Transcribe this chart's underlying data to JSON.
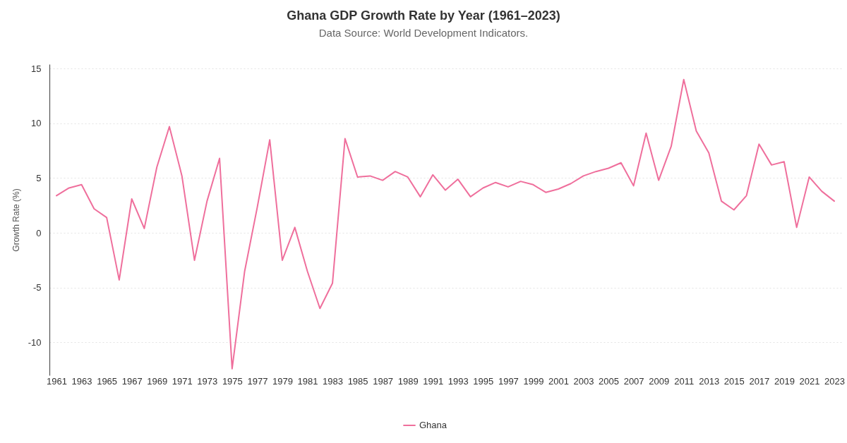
{
  "chart_data": {
    "type": "line",
    "title": "Ghana GDP Growth Rate by Year (1961–2023)",
    "subtitle": "Data Source: World Development Indicators.",
    "ylabel": "Growth Rate (%)",
    "categories": [
      "1961",
      null,
      "1963",
      null,
      "1965",
      null,
      "1967",
      null,
      "1969",
      null,
      "1971",
      null,
      "1973",
      null,
      "1975",
      null,
      "1977",
      null,
      "1979",
      null,
      "1981",
      null,
      "1983",
      null,
      "1985",
      null,
      "1987",
      null,
      "1989",
      null,
      "1991",
      null,
      "1993",
      null,
      "1995",
      null,
      "1997",
      null,
      "1999",
      null,
      "2001",
      null,
      "2003",
      null,
      "2005",
      null,
      "2007",
      null,
      "2009",
      null,
      "2011",
      null,
      "2013",
      null,
      "2015",
      null,
      "2017",
      null,
      "2019",
      null,
      "2021",
      null,
      "2023"
    ],
    "series": [
      {
        "name": "Ghana",
        "color": "#ef6f9c",
        "values": [
          3.4,
          4.1,
          4.4,
          2.2,
          1.4,
          -4.3,
          3.1,
          0.4,
          6.0,
          9.7,
          5.2,
          -2.5,
          2.9,
          6.8,
          -12.4,
          -3.5,
          2.3,
          8.5,
          -2.5,
          0.5,
          -3.5,
          -6.9,
          -4.6,
          8.6,
          5.1,
          5.2,
          4.8,
          5.6,
          5.1,
          3.3,
          5.3,
          3.9,
          4.9,
          3.3,
          4.1,
          4.6,
          4.2,
          4.7,
          4.4,
          3.7,
          4.0,
          4.5,
          5.2,
          5.6,
          5.9,
          6.4,
          4.3,
          9.1,
          4.8,
          7.9,
          14.0,
          9.3,
          7.3,
          2.9,
          2.1,
          3.4,
          8.1,
          6.2,
          6.5,
          0.5,
          5.1,
          3.8,
          2.9
        ]
      }
    ],
    "ylim": [
      -13,
      15.4
    ],
    "yticks": [
      -10,
      -5,
      0,
      5,
      10,
      15
    ],
    "grid": "y",
    "legend": "bottom"
  }
}
